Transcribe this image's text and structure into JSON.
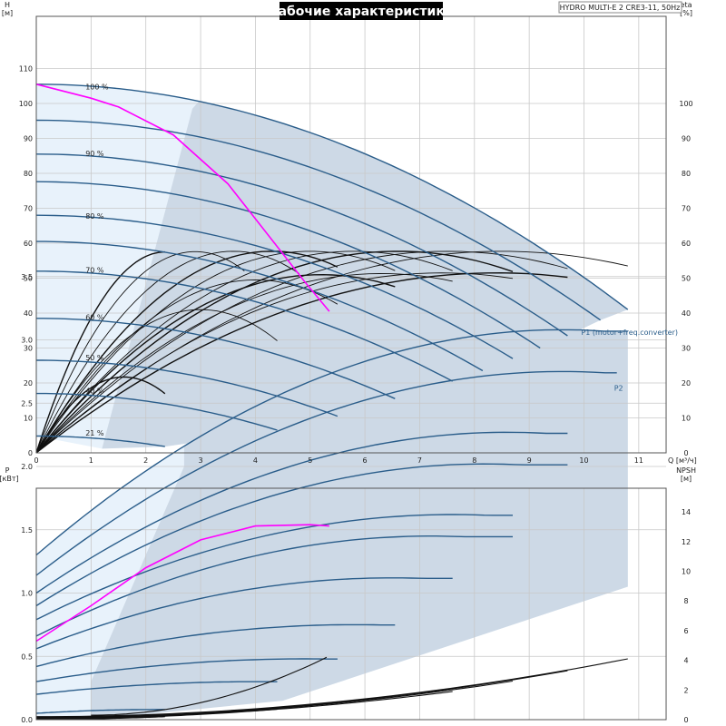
{
  "title": "Рабочие характеристики",
  "model": "HYDRO MULTI-E 2 CRE3-11, 50Hz",
  "colors": {
    "envelope_outer": "#e8f2fb",
    "envelope_inner": "#cdd9e6",
    "curve_main": "#2a5d8a",
    "curve_highlight": "#ff00ff",
    "efficiency": "#111111",
    "grid": "#c8c8c8"
  },
  "chart_data": [
    {
      "type": "line",
      "id": "qh",
      "xlabel": "Q [м³/ч]",
      "ylabel_left": "H",
      "ylabel_left_unit": "[м]",
      "ylabel_right": "eta",
      "ylabel_right_unit": "[%]",
      "xlim": [
        0,
        11.5
      ],
      "ylim": [
        0,
        120
      ],
      "x_ticks": [
        "0",
        "1",
        "2",
        "3",
        "4",
        "5",
        "6",
        "7",
        "8",
        "9",
        "10",
        "11"
      ],
      "y_ticks_left": [
        "0",
        "10",
        "20",
        "30",
        "40",
        "50",
        "60",
        "70",
        "80",
        "90",
        "100",
        "110"
      ],
      "y_ticks_right": [
        "0",
        "10",
        "20",
        "30",
        "40",
        "50",
        "60",
        "70",
        "80",
        "90",
        "100"
      ],
      "speed_labels": [
        {
          "text": "100 %",
          "x": 0.6,
          "y": 104
        },
        {
          "text": "90 %",
          "x": 0.6,
          "y": 85
        },
        {
          "text": "80 %",
          "x": 0.6,
          "y": 67
        },
        {
          "text": "70 %",
          "x": 0.6,
          "y": 51.5
        },
        {
          "text": "60 %",
          "x": 0.6,
          "y": 38
        },
        {
          "text": "50 %",
          "x": 0.6,
          "y": 26.5
        },
        {
          "text": "40 %",
          "x": 0.6,
          "y": 17
        },
        {
          "text": "21 %",
          "x": 0.6,
          "y": 5
        }
      ],
      "speed_curves": [
        {
          "name": "100 %",
          "shutoff": 105.5,
          "qmax": 10.8,
          "hend": 41
        },
        {
          "name": "~95 %",
          "shutoff": 95.2,
          "qmax": 10.3,
          "hend": 38
        },
        {
          "name": "90 %",
          "shutoff": 85.5,
          "qmax": 9.7,
          "hend": 33.5
        },
        {
          "name": "~85 %",
          "shutoff": 77.6,
          "qmax": 9.2,
          "hend": 30
        },
        {
          "name": "80 %",
          "shutoff": 68,
          "qmax": 8.7,
          "hend": 27
        },
        {
          "name": "~75 %",
          "shutoff": 60.5,
          "qmax": 8.15,
          "hend": 23.5
        },
        {
          "name": "70 %",
          "shutoff": 52,
          "qmax": 7.6,
          "hend": 20.5
        },
        {
          "name": "60 %",
          "shutoff": 38.5,
          "qmax": 6.55,
          "hend": 15.5
        },
        {
          "name": "50 %",
          "shutoff": 26.5,
          "qmax": 5.5,
          "hend": 10.5
        },
        {
          "name": "40 %",
          "shutoff": 17,
          "qmax": 4.4,
          "hend": 6.5
        },
        {
          "name": "21 %",
          "shutoff": 4.8,
          "qmax": 2.35,
          "hend": 1.8
        }
      ],
      "duty_curve_magenta": [
        [
          0,
          105.5
        ],
        [
          1,
          101.5
        ],
        [
          1.5,
          99
        ],
        [
          2.5,
          91
        ],
        [
          3.5,
          77
        ],
        [
          4.3,
          61
        ],
        [
          4.9,
          49
        ],
        [
          5.35,
          40.5
        ]
      ],
      "efficiency_curves": [
        {
          "q": 2.35,
          "eta": 57.5,
          "qend": 2.35
        },
        {
          "q": 2.9,
          "eta": 57.6,
          "qend": 3.8
        },
        {
          "q": 3.6,
          "eta": 57.7,
          "qend": 4.8
        },
        {
          "q": 4.3,
          "eta": 57.7,
          "qend": 5.5
        },
        {
          "q": 5.0,
          "eta": 57.7,
          "qend": 6.55
        },
        {
          "q": 5.8,
          "eta": 57.7,
          "qend": 7.6
        },
        {
          "q": 6.6,
          "eta": 57.7,
          "qend": 8.7
        },
        {
          "q": 7.5,
          "eta": 57.7,
          "qend": 9.7
        },
        {
          "q": 8.5,
          "eta": 57.7,
          "qend": 10.8
        },
        {
          "q": 1.6,
          "eta": 21.7,
          "qend": 2.35
        },
        {
          "q": 3.0,
          "eta": 41.0,
          "qend": 4.4
        },
        {
          "q": 4.0,
          "eta": 49.5,
          "qend": 5.5
        },
        {
          "q": 5.2,
          "eta": 51.0,
          "qend": 6.55
        },
        {
          "q": 6.3,
          "eta": 51.3,
          "qend": 7.6
        },
        {
          "q": 7.4,
          "eta": 51.5,
          "qend": 8.7
        },
        {
          "q": 8.4,
          "eta": 51.5,
          "qend": 9.7
        }
      ]
    },
    {
      "type": "line",
      "id": "power",
      "xlabel": "",
      "ylabel_left": "P",
      "ylabel_left_unit": "[кВт]",
      "ylabel_right": "NPSH",
      "ylabel_right_unit": "[м]",
      "xlim": [
        0,
        11.5
      ],
      "ylim": [
        0,
        3.9
      ],
      "y_ticks_left": [
        "0.0",
        "0.5",
        "1.0",
        "1.5",
        "2.0",
        "2.5",
        "3.0",
        "3.5"
      ],
      "y_ticks_right": [
        "0",
        "2",
        "4",
        "6",
        "8",
        "10",
        "12",
        "14"
      ],
      "npsh_max": 15.6,
      "series_labels": [
        {
          "text": "P1 (motor+freq.converter)",
          "x": 9.95,
          "y": 3.06
        },
        {
          "text": "P2",
          "x": 10.55,
          "y": 2.62
        }
      ],
      "power_curves": [
        {
          "p0": 1.3,
          "pmax": 3.08,
          "qpk": 9.6,
          "qend": 10.8
        },
        {
          "p0": 1.14,
          "pmax": 2.75,
          "qpk": 9.6,
          "qend": 10.6
        },
        {
          "p0": 1.0,
          "pmax": 2.27,
          "qpk": 8.6,
          "qend": 9.7
        },
        {
          "p0": 0.9,
          "pmax": 2.02,
          "qpk": 8.2,
          "qend": 9.7
        },
        {
          "p0": 0.79,
          "pmax": 1.62,
          "qpk": 7.6,
          "qend": 8.7
        },
        {
          "p0": 0.66,
          "pmax": 1.45,
          "qpk": 7.2,
          "qend": 8.7
        },
        {
          "p0": 0.56,
          "pmax": 1.12,
          "qpk": 6.5,
          "qend": 7.6
        },
        {
          "p0": 0.42,
          "pmax": 0.75,
          "qpk": 5.8,
          "qend": 6.55
        },
        {
          "p0": 0.3,
          "pmax": 0.48,
          "qpk": 4.9,
          "qend": 5.5
        },
        {
          "p0": 0.2,
          "pmax": 0.3,
          "qpk": 4.0,
          "qend": 4.4
        },
        {
          "p0": 0.05,
          "pmax": 0.08,
          "qpk": 2.2,
          "qend": 2.35
        }
      ],
      "magenta_curve": [
        [
          0,
          0.62
        ],
        [
          1,
          0.9
        ],
        [
          2,
          1.2
        ],
        [
          3,
          1.42
        ],
        [
          4,
          1.53
        ],
        [
          5,
          1.54
        ],
        [
          5.35,
          1.53
        ]
      ],
      "npsh_curves": [
        {
          "q0": 0,
          "n0": 0.2,
          "qend": 10.8,
          "nend": 4.1
        },
        {
          "q0": 0,
          "n0": 0.15,
          "qend": 9.7,
          "nend": 3.3
        },
        {
          "q0": 0,
          "n0": 0.12,
          "qend": 8.7,
          "nend": 2.6
        },
        {
          "q0": 0,
          "n0": 0.1,
          "qend": 7.6,
          "nend": 1.9
        },
        {
          "q0": 0,
          "n0": 0.08,
          "qend": 5.5,
          "nend": 1.2
        },
        {
          "q0": 1.0,
          "n0": 0.3,
          "qend": 5.3,
          "nend": 4.2
        },
        {
          "q0": 0,
          "n0": 0.05,
          "qend": 4.4,
          "nend": 0.7
        },
        {
          "q0": 0,
          "n0": 0.02,
          "qend": 2.35,
          "nend": 0.2
        }
      ]
    }
  ]
}
